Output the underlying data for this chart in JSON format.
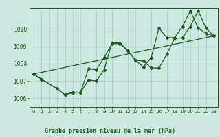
{
  "title": "Graphe pression niveau de la mer (hPa)",
  "background_color": "#cce8e0",
  "line_color": "#1a5c1a",
  "grid_color": "#aacccc",
  "xlim": [
    -0.5,
    23.5
  ],
  "ylim": [
    1005.5,
    1011.2
  ],
  "yticks": [
    1006,
    1007,
    1008,
    1009,
    1010
  ],
  "xticks": [
    0,
    1,
    2,
    3,
    4,
    5,
    6,
    7,
    8,
    9,
    10,
    11,
    12,
    13,
    14,
    15,
    16,
    17,
    18,
    19,
    20,
    21,
    22,
    23
  ],
  "series1_x": [
    0,
    1,
    3,
    4,
    5,
    6,
    7,
    8,
    9,
    10,
    11,
    12,
    13,
    14,
    15,
    16,
    17,
    18,
    19,
    20,
    21,
    22,
    23
  ],
  "series1_y": [
    1007.4,
    1007.1,
    1006.55,
    1006.2,
    1006.35,
    1006.35,
    1007.7,
    1007.65,
    1008.35,
    1009.15,
    1009.15,
    1008.75,
    1008.2,
    1007.8,
    1008.35,
    1010.05,
    1009.5,
    1009.5,
    1010.15,
    1011.05,
    1010.05,
    1009.75,
    1009.6
  ],
  "series2_x": [
    0,
    1,
    3,
    4,
    5,
    6,
    7,
    8,
    9,
    10,
    11,
    12,
    13,
    14,
    15,
    16,
    17,
    18,
    19,
    20,
    21,
    22,
    23
  ],
  "series2_y": [
    1007.4,
    1007.1,
    1006.55,
    1006.2,
    1006.35,
    1006.35,
    1007.05,
    1007.0,
    1007.65,
    1009.2,
    1009.2,
    1008.75,
    1008.2,
    1008.15,
    1007.75,
    1007.75,
    1008.55,
    1009.45,
    1009.5,
    1010.15,
    1011.05,
    1010.05,
    1009.6
  ],
  "series3_x": [
    0,
    23
  ],
  "series3_y": [
    1007.4,
    1009.6
  ]
}
